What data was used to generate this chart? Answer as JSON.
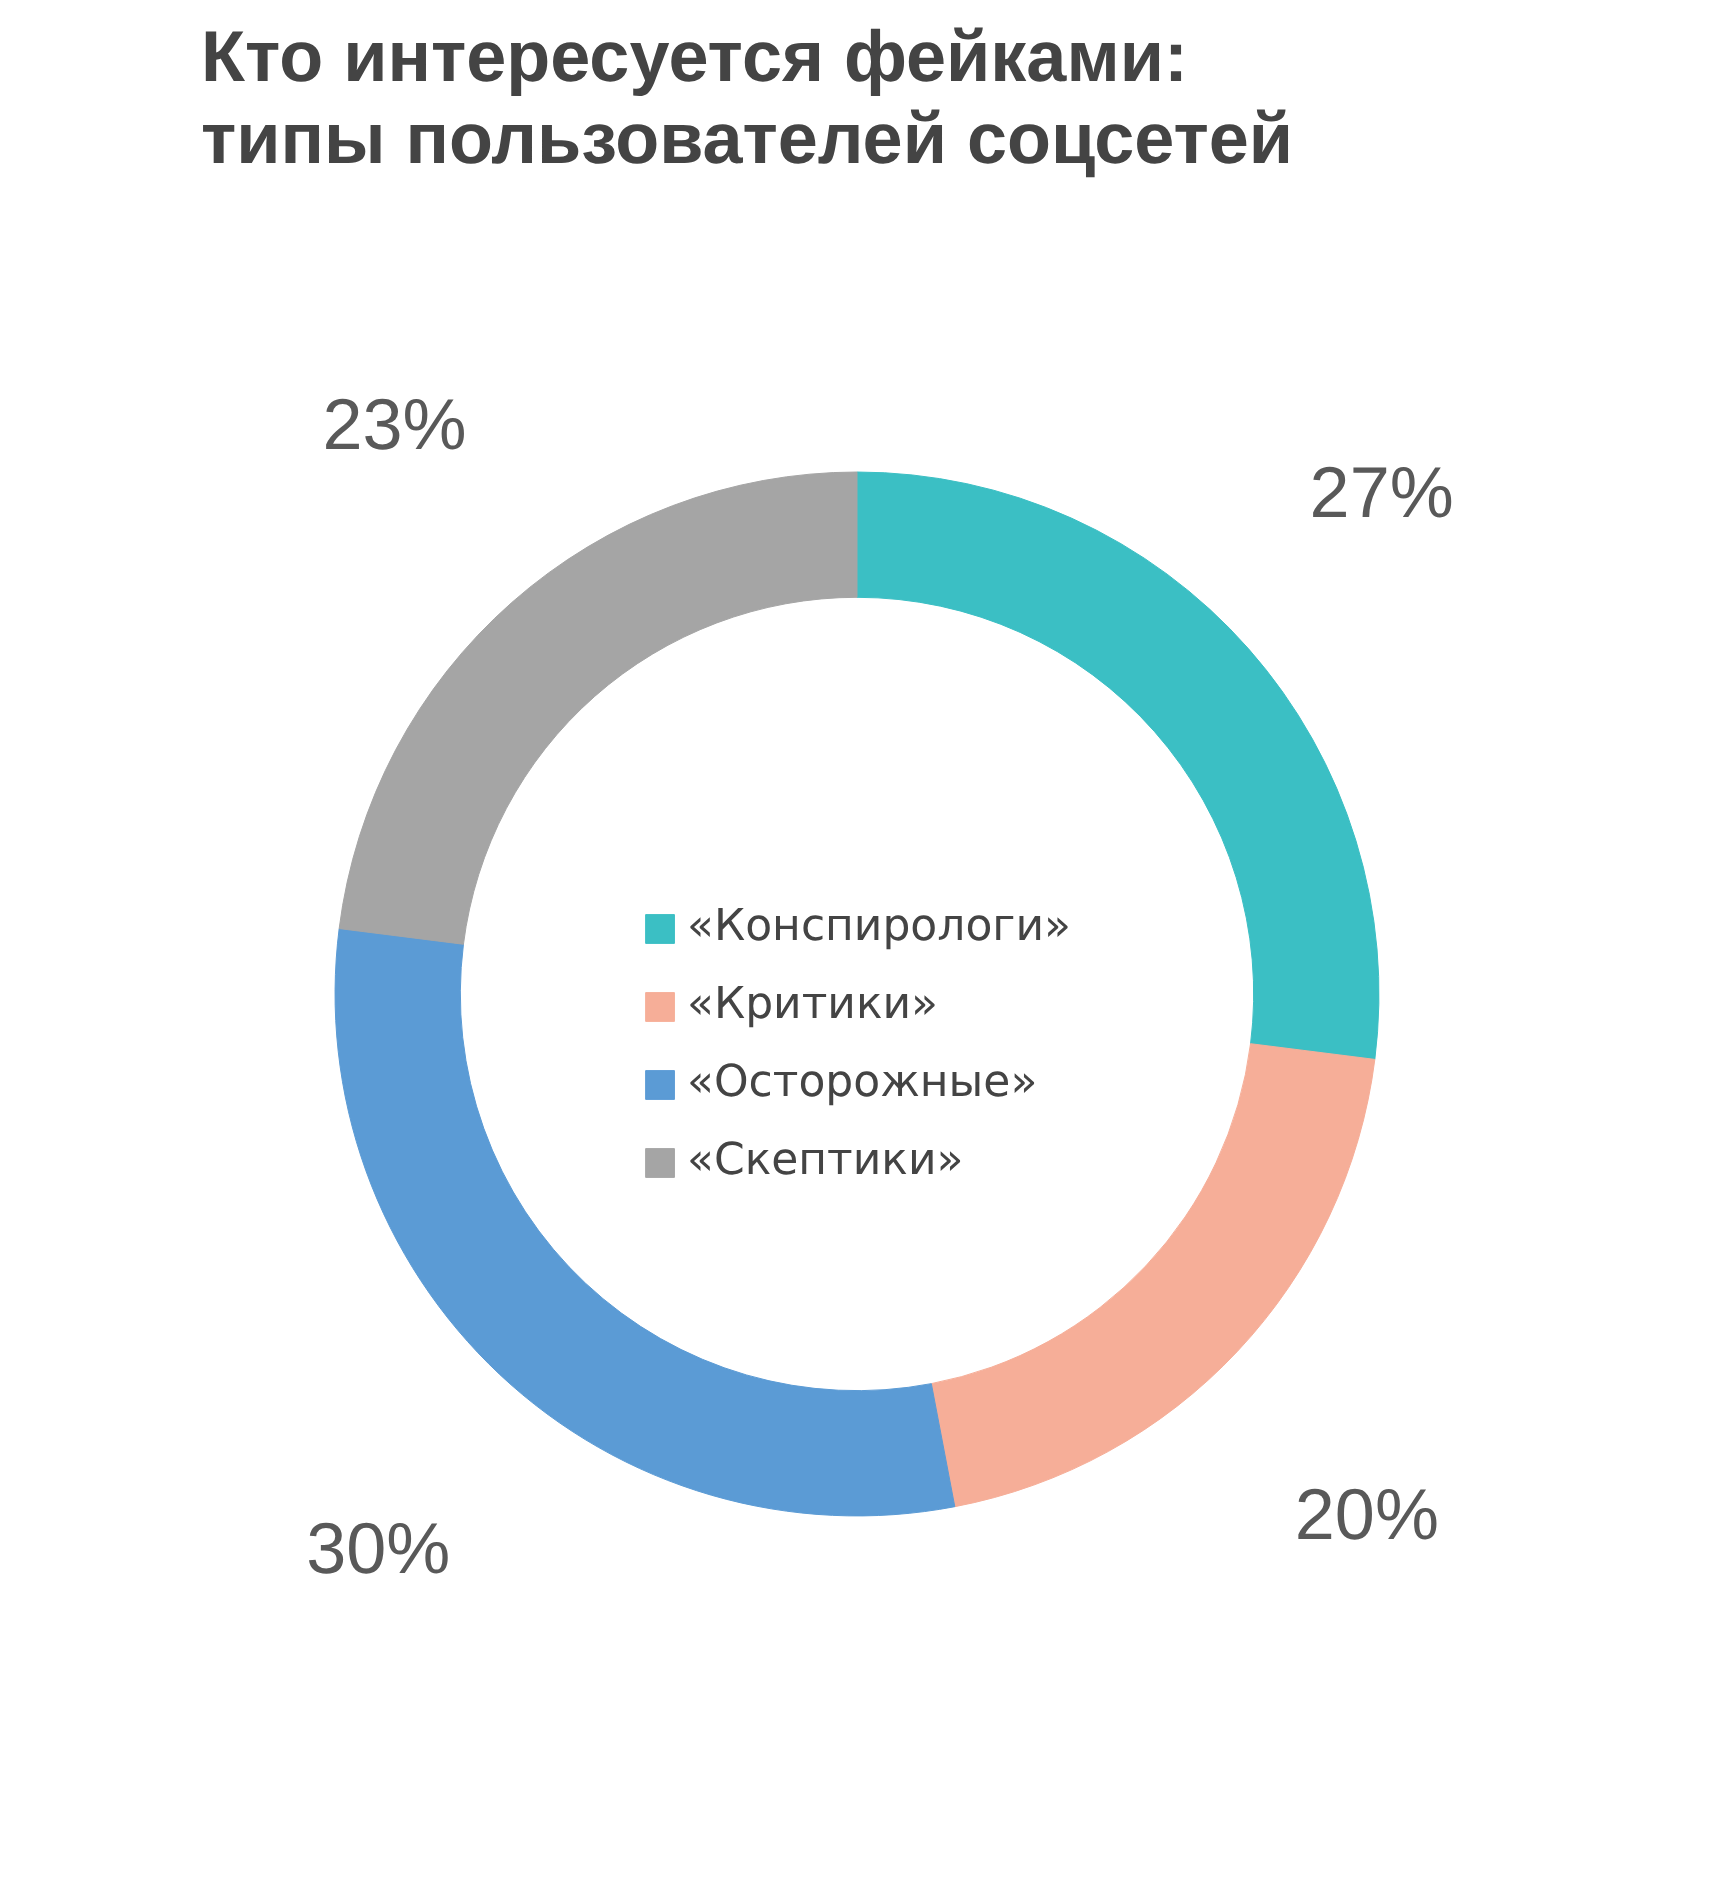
{
  "chart_data": {
    "type": "donut",
    "title": "Кто интересуется фейками:\nтипы пользователей соцсетей",
    "categories": [
      "«Конспирологи»",
      "«Критики»",
      "«Осторожные»",
      "«Скептики»"
    ],
    "values": [
      27,
      20,
      30,
      23
    ],
    "colors": [
      "#3bbfc4",
      "#f6ae98",
      "#5b9bd5",
      "#a5a5a5"
    ],
    "value_labels": [
      "27%",
      "20%",
      "30%",
      "23%"
    ],
    "legend": "center"
  }
}
